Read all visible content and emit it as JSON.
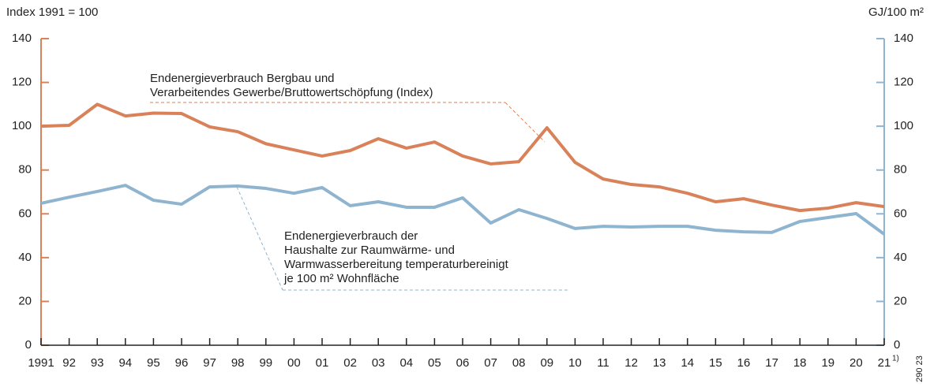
{
  "chart_data": {
    "type": "line",
    "y_label": "Index 1991 = 100",
    "y2_label": "GJ/100 m²",
    "categories": [
      "1991",
      "92",
      "93",
      "94",
      "95",
      "96",
      "97",
      "98",
      "99",
      "00",
      "01",
      "02",
      "03",
      "04",
      "05",
      "06",
      "07",
      "08",
      "09",
      "10",
      "11",
      "12",
      "13",
      "14",
      "15",
      "16",
      "17",
      "18",
      "19",
      "20",
      "21"
    ],
    "footnote_marker": "1)",
    "series": [
      {
        "name": [
          "Endenergieverbrauch Bergbau und",
          "Verarbeitendes Gewerbe/Bruttowertschöpfung (Index)"
        ],
        "color": "#d9825a",
        "values": [
          100,
          100.4,
          110,
          104.7,
          106,
          105.8,
          99.7,
          97.5,
          92,
          89.2,
          86.4,
          88.9,
          94.3,
          90,
          92.8,
          86.4,
          82.8,
          83.8,
          99.3,
          83.5,
          75.9,
          73.4,
          72.3,
          69.4,
          65.5,
          66.9,
          64,
          61.5,
          62.6,
          65.1,
          63.3
        ]
      },
      {
        "name": [
          "Endenergieverbrauch der",
          "Haushalte zur Raumwärme- und",
          "Warmwasserbereitung temperaturbereinigt",
          "je 100 m² Wohnfläche"
        ],
        "color": "#8fb4cf",
        "axis": "y2",
        "values": [
          64.8,
          67.6,
          70.2,
          73,
          66.2,
          64.4,
          72.3,
          72.7,
          71.6,
          69.4,
          72,
          63.7,
          65.5,
          63,
          63,
          67.3,
          55.8,
          61.9,
          57.9,
          53.3,
          54.3,
          54,
          54.3,
          54.3,
          52.5,
          51.8,
          51.5,
          56.5,
          58.3,
          60.1,
          50.7
        ]
      }
    ],
    "ylim": [
      0,
      140
    ],
    "yticks": [
      0,
      20,
      40,
      60,
      80,
      100,
      120,
      140
    ],
    "y2lim": [
      0,
      140
    ],
    "y2ticks": [
      0,
      20,
      40,
      60,
      80,
      100,
      120,
      140
    ],
    "source_code": "290 23"
  }
}
